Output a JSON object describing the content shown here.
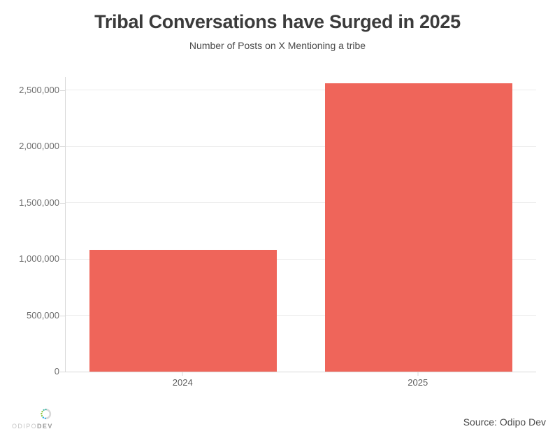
{
  "chart_data": {
    "type": "bar",
    "title": "Tribal Conversations have Surged in 2025",
    "subtitle": "Number of Posts on X Mentioning a tribe",
    "categories": [
      "2024",
      "2025"
    ],
    "values": [
      1080000,
      2560000
    ],
    "xlabel": "",
    "ylabel": "",
    "ylim": [
      0,
      2615000
    ],
    "yticks": [
      0,
      500000,
      1000000,
      1500000,
      2000000,
      2500000
    ],
    "grid": true,
    "legend": false,
    "bar_color": "#ef655a"
  },
  "footer": {
    "source": "Source: Odipo Dev",
    "logo_text_light": "ODIPO",
    "logo_text_bold": "DEV"
  },
  "colors": {
    "bar": "#ef655a",
    "gridline": "#ececec",
    "axis": "#d9d9d9",
    "tick_label": "#6f6f6f",
    "title": "#3b3b3b",
    "logo_green": "#8cc63f",
    "logo_teal": "#3fb5a3",
    "logo_blue": "#29abe2",
    "logo_ring": "#d9d9d9"
  }
}
